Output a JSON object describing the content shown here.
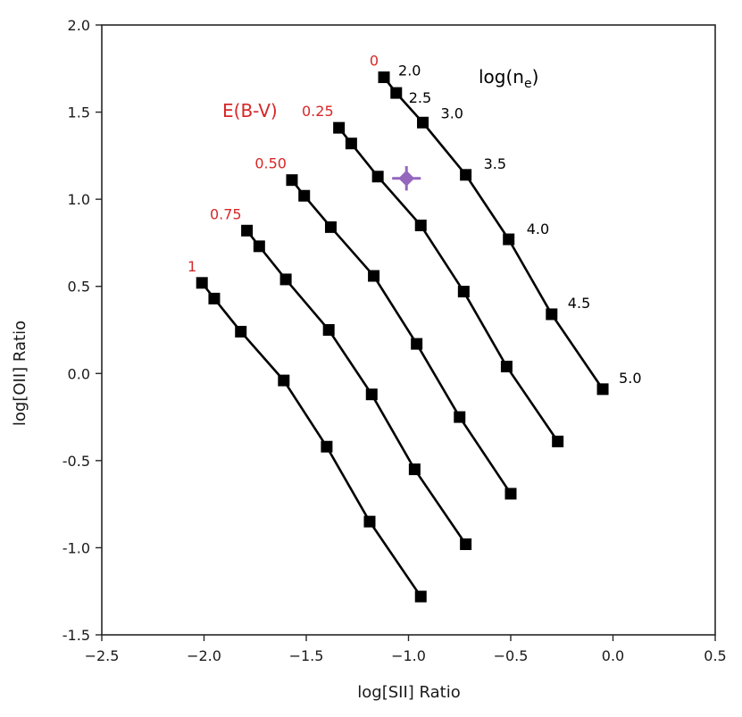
{
  "chart_data": {
    "type": "line",
    "xlabel": "log[SII] Ratio",
    "ylabel": "log[OII] Ratio",
    "xlim": [
      -2.5,
      0.5
    ],
    "ylim": [
      -1.5,
      2.0
    ],
    "xticks": [
      -2.5,
      -2.0,
      -1.5,
      -1.0,
      -0.5,
      0.0,
      0.5
    ],
    "xtick_labels": [
      "−2.5",
      "−2.0",
      "−1.5",
      "−1.0",
      "−0.5",
      "0.0",
      "0.5"
    ],
    "yticks": [
      -1.5,
      -1.0,
      -0.5,
      0.0,
      0.5,
      1.0,
      1.5,
      2.0
    ],
    "ytick_labels": [
      "-1.5",
      "-1.0",
      "-0.5",
      "0.0",
      "0.5",
      "1.0",
      "1.5",
      "2.0"
    ],
    "grid": false,
    "ebv_title": "E(B-V)",
    "ne_title": "log(n",
    "ne_title_sub": "e",
    "ne_title_close": ")",
    "line_color": "#000000",
    "ebv_color": "#d62728",
    "measurement_color": "#9467bd",
    "ne_labels": [
      "2.0",
      "2.5",
      "3.0",
      "3.5",
      "4.0",
      "4.5",
      "5.0"
    ],
    "series": [
      {
        "ebv": "0",
        "x": [
          -1.12,
          -1.06,
          -0.93,
          -0.72,
          -0.51,
          -0.3,
          -0.05
        ],
        "y": [
          1.7,
          1.61,
          1.44,
          1.14,
          0.77,
          0.34,
          -0.09
        ]
      },
      {
        "ebv": "0.25",
        "x": [
          -1.34,
          -1.28,
          -1.15,
          -0.94,
          -0.73,
          -0.52,
          -0.27
        ],
        "y": [
          1.41,
          1.32,
          1.13,
          0.85,
          0.47,
          0.04,
          -0.39
        ]
      },
      {
        "ebv": "0.50",
        "x": [
          -1.57,
          -1.51,
          -1.38,
          -1.17,
          -0.96,
          -0.75,
          -0.5
        ],
        "y": [
          1.11,
          1.02,
          0.84,
          0.56,
          0.17,
          -0.25,
          -0.69
        ]
      },
      {
        "ebv": "0.75",
        "x": [
          -1.79,
          -1.73,
          -1.6,
          -1.39,
          -1.18,
          -0.97,
          -0.72
        ],
        "y": [
          0.82,
          0.73,
          0.54,
          0.25,
          -0.12,
          -0.55,
          -0.98
        ]
      },
      {
        "ebv": "1",
        "x": [
          -2.01,
          -1.95,
          -1.82,
          -1.61,
          -1.4,
          -1.19,
          -0.94
        ],
        "y": [
          0.52,
          0.43,
          0.24,
          -0.04,
          -0.42,
          -0.85,
          -1.28
        ]
      }
    ],
    "measurement": {
      "x": -1.01,
      "y": 1.12,
      "xerr": 0.07,
      "yerr": 0.07
    }
  }
}
